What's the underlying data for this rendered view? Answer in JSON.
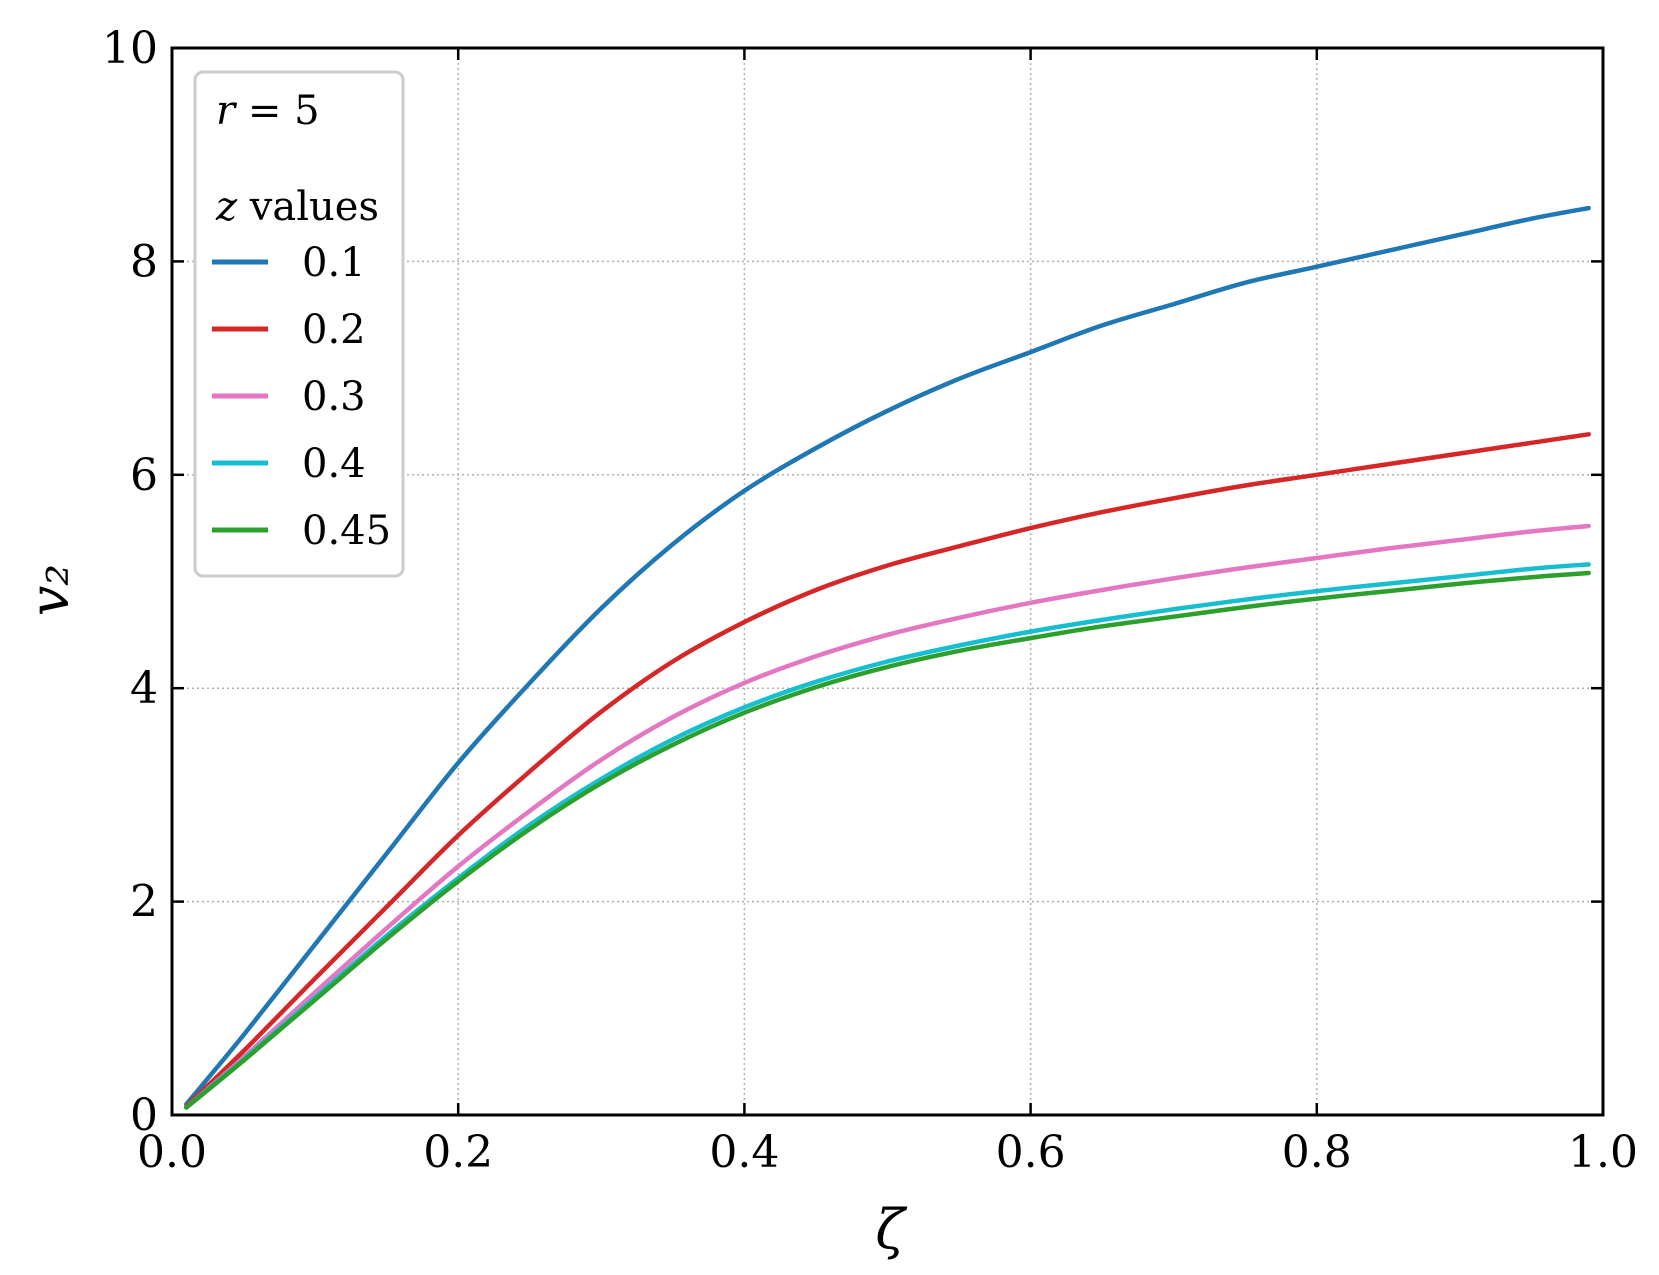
{
  "chart_data": {
    "type": "line",
    "xlabel": "ζ",
    "ylabel": "v₂",
    "xlim": [
      0.0,
      1.0
    ],
    "ylim": [
      0,
      10
    ],
    "xticks": [
      "0.0",
      "0.2",
      "0.4",
      "0.6",
      "0.8",
      "1.0"
    ],
    "yticks": [
      "0",
      "2",
      "4",
      "6",
      "8",
      "10"
    ],
    "grid": true,
    "legend": {
      "placement": "top-left",
      "note_var": "r",
      "note_rest": " = 5",
      "title_var": "z",
      "title_rest": " values"
    },
    "x": [
      0.01,
      0.05,
      0.1,
      0.15,
      0.2,
      0.25,
      0.3,
      0.35,
      0.4,
      0.45,
      0.5,
      0.55,
      0.6,
      0.65,
      0.7,
      0.75,
      0.8,
      0.85,
      0.9,
      0.95,
      0.99
    ],
    "series": [
      {
        "name": "0.1",
        "color": "#1f77b4",
        "values": [
          0.1,
          0.75,
          1.6,
          2.45,
          3.3,
          4.05,
          4.75,
          5.35,
          5.85,
          6.25,
          6.6,
          6.9,
          7.15,
          7.4,
          7.6,
          7.8,
          7.95,
          8.1,
          8.25,
          8.4,
          8.5
        ]
      },
      {
        "name": "0.2",
        "color": "#d62728",
        "values": [
          0.08,
          0.6,
          1.28,
          1.95,
          2.62,
          3.22,
          3.78,
          4.25,
          4.62,
          4.92,
          5.15,
          5.33,
          5.5,
          5.65,
          5.78,
          5.9,
          6.0,
          6.1,
          6.2,
          6.3,
          6.38
        ]
      },
      {
        "name": "0.3",
        "color": "#e377c2",
        "values": [
          0.07,
          0.54,
          1.15,
          1.75,
          2.33,
          2.85,
          3.33,
          3.73,
          4.05,
          4.3,
          4.5,
          4.66,
          4.8,
          4.92,
          5.03,
          5.13,
          5.22,
          5.31,
          5.39,
          5.47,
          5.52
        ]
      },
      {
        "name": "0.4",
        "color": "#17becf",
        "values": [
          0.07,
          0.52,
          1.1,
          1.68,
          2.22,
          2.72,
          3.15,
          3.52,
          3.82,
          4.06,
          4.25,
          4.4,
          4.53,
          4.64,
          4.74,
          4.83,
          4.91,
          4.98,
          5.05,
          5.12,
          5.16
        ]
      },
      {
        "name": "0.45",
        "color": "#2ca02c",
        "values": [
          0.07,
          0.51,
          1.08,
          1.65,
          2.19,
          2.68,
          3.11,
          3.47,
          3.77,
          4.01,
          4.2,
          4.35,
          4.47,
          4.58,
          4.67,
          4.76,
          4.84,
          4.91,
          4.98,
          5.04,
          5.08
        ]
      }
    ]
  }
}
